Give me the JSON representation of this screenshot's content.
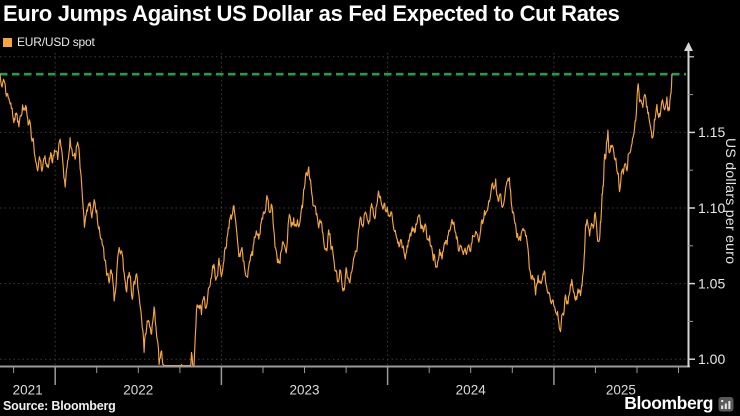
{
  "title": "Euro Jumps Against US Dollar as Fed Expected to Cut Rates",
  "legend": {
    "label": "EUR/USD spot",
    "swatch_color": "#f6a63c"
  },
  "source": "Source: Bloomberg",
  "brand": "Bloomberg",
  "colors": {
    "background": "#000000",
    "line": "#f6a63c",
    "reference": "#1c9e50",
    "grid": "#3c3c3c",
    "axis_x": "#9a9a9a",
    "axis_y": "#d6d6d6",
    "tick_label": "#e8e8e8",
    "year_label": "#dcdcdc"
  },
  "chart_data": {
    "type": "line",
    "title": "EUR/USD spot",
    "xlabel": "",
    "ylabel": "US dollars per euro",
    "legend_position": "top-left",
    "grid": "dotted",
    "xlim": [
      2021.668,
      2025.807
    ],
    "ylim": [
      0.9955,
      1.2025
    ],
    "ytick_values": [
      1.0,
      1.05,
      1.1,
      1.15
    ],
    "ytick_labels": [
      "1.00",
      "1.05",
      "1.10",
      "1.15"
    ],
    "yminor_values": [
      1.025,
      1.075,
      1.125,
      1.175
    ],
    "grid_y": [
      1.0,
      1.05,
      1.1,
      1.15,
      1.2
    ],
    "grid_x": [
      2022,
      2023,
      2024,
      2025
    ],
    "year_labels": [
      "2021",
      "2022",
      "2023",
      "2024",
      "2025"
    ],
    "years": [
      2021,
      2022,
      2023,
      2024,
      2025
    ],
    "reference_line": {
      "value": 1.1885,
      "style": "dashed",
      "meaning": "current spot level"
    },
    "series": [
      {
        "name": "EUR/USD spot",
        "points": [
          [
            2021.668,
            1.1885
          ],
          [
            2021.685,
            1.1832
          ],
          [
            2021.703,
            1.1762
          ],
          [
            2021.718,
            1.1728
          ],
          [
            2021.733,
            1.1695
          ],
          [
            2021.748,
            1.1588
          ],
          [
            2021.761,
            1.1625
          ],
          [
            2021.774,
            1.1568
          ],
          [
            2021.789,
            1.1605
          ],
          [
            2021.804,
            1.1682
          ],
          [
            2021.819,
            1.1645
          ],
          [
            2021.834,
            1.1595
          ],
          [
            2021.849,
            1.1565
          ],
          [
            2021.864,
            1.1455
          ],
          [
            2021.879,
            1.1335
          ],
          [
            2021.894,
            1.1245
          ],
          [
            2021.909,
            1.1318
          ],
          [
            2021.924,
            1.1265
          ],
          [
            2021.939,
            1.1345
          ],
          [
            2021.954,
            1.1285
          ],
          [
            2021.969,
            1.1325
          ],
          [
            2021.984,
            1.1298
          ],
          [
            2022.0,
            1.1375
          ],
          [
            2022.015,
            1.132
          ],
          [
            2022.03,
            1.1455
          ],
          [
            2022.045,
            1.1315
          ],
          [
            2022.06,
            1.1138
          ],
          [
            2022.075,
            1.1315
          ],
          [
            2022.09,
            1.1465
          ],
          [
            2022.105,
            1.1345
          ],
          [
            2022.12,
            1.1322
          ],
          [
            2022.135,
            1.1435
          ],
          [
            2022.15,
            1.1262
          ],
          [
            2022.162,
            1.1108
          ],
          [
            2022.176,
            1.0872
          ],
          [
            2022.19,
            1.0988
          ],
          [
            2022.205,
            1.1015
          ],
          [
            2022.22,
            1.0935
          ],
          [
            2022.235,
            1.1055
          ],
          [
            2022.25,
            1.0985
          ],
          [
            2022.265,
            1.0875
          ],
          [
            2022.28,
            1.0795
          ],
          [
            2022.295,
            1.0665
          ],
          [
            2022.31,
            1.0555
          ],
          [
            2022.325,
            1.0505
          ],
          [
            2022.34,
            1.0565
          ],
          [
            2022.355,
            1.0385
          ],
          [
            2022.37,
            1.0568
          ],
          [
            2022.385,
            1.0738
          ],
          [
            2022.4,
            1.0715
          ],
          [
            2022.415,
            1.0568
          ],
          [
            2022.43,
            1.0445
          ],
          [
            2022.445,
            1.0575
          ],
          [
            2022.46,
            1.0425
          ],
          [
            2022.475,
            1.0515
          ],
          [
            2022.49,
            1.0565
          ],
          [
            2022.505,
            1.0415
          ],
          [
            2022.52,
            1.0265
          ],
          [
            2022.535,
            1.0045
          ],
          [
            2022.55,
            1.0205
          ],
          [
            2022.565,
            1.0245
          ],
          [
            2022.58,
            1.0165
          ],
          [
            2022.595,
            1.0345
          ],
          [
            2022.61,
            1.0155
          ],
          [
            2022.625,
            0.9965
          ],
          [
            2022.64,
            1.0055
          ],
          [
            2022.655,
            0.9915
          ],
          [
            2022.67,
            0.9745
          ],
          [
            2022.685,
            0.9895
          ],
          [
            2022.7,
            0.9595
          ],
          [
            2022.715,
            0.9685
          ],
          [
            2022.73,
            0.9835
          ],
          [
            2022.745,
            0.9745
          ],
          [
            2022.76,
            0.9965
          ],
          [
            2022.775,
            0.9755
          ],
          [
            2022.79,
            0.9865
          ],
          [
            2022.805,
            0.9735
          ],
          [
            2022.82,
            1.0045
          ],
          [
            2022.835,
            0.9935
          ],
          [
            2022.85,
            1.0325
          ],
          [
            2022.865,
            1.0355
          ],
          [
            2022.88,
            1.0295
          ],
          [
            2022.895,
            1.0415
          ],
          [
            2022.91,
            1.0345
          ],
          [
            2022.925,
            1.0475
          ],
          [
            2022.94,
            1.0535
          ],
          [
            2022.955,
            1.0628
          ],
          [
            2022.97,
            1.0538
          ],
          [
            2022.985,
            1.0668
          ],
          [
            2023.0,
            1.0545
          ],
          [
            2023.015,
            1.0648
          ],
          [
            2023.03,
            1.0745
          ],
          [
            2023.045,
            1.0865
          ],
          [
            2023.06,
            1.0925
          ],
          [
            2023.075,
            1.1015
          ],
          [
            2023.09,
            1.0865
          ],
          [
            2023.105,
            1.0678
          ],
          [
            2023.12,
            1.0725
          ],
          [
            2023.135,
            1.0648
          ],
          [
            2023.15,
            1.0548
          ],
          [
            2023.165,
            1.0615
          ],
          [
            2023.18,
            1.0685
          ],
          [
            2023.195,
            1.0765
          ],
          [
            2023.21,
            1.0848
          ],
          [
            2023.225,
            1.0795
          ],
          [
            2023.24,
            1.0905
          ],
          [
            2023.255,
            1.0975
          ],
          [
            2023.27,
            1.1045
          ],
          [
            2023.285,
            1.0985
          ],
          [
            2023.3,
            1.1025
          ],
          [
            2023.315,
            1.0855
          ],
          [
            2023.33,
            1.0715
          ],
          [
            2023.345,
            1.0638
          ],
          [
            2023.36,
            1.0715
          ],
          [
            2023.375,
            1.0762
          ],
          [
            2023.39,
            1.0702
          ],
          [
            2023.405,
            1.0925
          ],
          [
            2023.42,
            1.0875
          ],
          [
            2023.435,
            1.0935
          ],
          [
            2023.45,
            1.0878
          ],
          [
            2023.465,
            1.0875
          ],
          [
            2023.48,
            1.0982
          ],
          [
            2023.495,
            1.1125
          ],
          [
            2023.51,
            1.1235
          ],
          [
            2023.525,
            1.1272
          ],
          [
            2023.54,
            1.1135
          ],
          [
            2023.555,
            1.1015
          ],
          [
            2023.57,
            1.0955
          ],
          [
            2023.585,
            1.0868
          ],
          [
            2023.6,
            1.0912
          ],
          [
            2023.615,
            1.0785
          ],
          [
            2023.63,
            1.0732
          ],
          [
            2023.645,
            1.0855
          ],
          [
            2023.66,
            1.0725
          ],
          [
            2023.675,
            1.0668
          ],
          [
            2023.69,
            1.0588
          ],
          [
            2023.705,
            1.0515
          ],
          [
            2023.72,
            1.0565
          ],
          [
            2023.735,
            1.0468
          ],
          [
            2023.75,
            1.0605
          ],
          [
            2023.765,
            1.0535
          ],
          [
            2023.78,
            1.0572
          ],
          [
            2023.795,
            1.0665
          ],
          [
            2023.81,
            1.0715
          ],
          [
            2023.825,
            1.0852
          ],
          [
            2023.84,
            1.0935
          ],
          [
            2023.855,
            1.0892
          ],
          [
            2023.87,
            1.0965
          ],
          [
            2023.885,
            1.0895
          ],
          [
            2023.9,
            1.1005
          ],
          [
            2023.915,
            1.0955
          ],
          [
            2023.93,
            1.1005
          ],
          [
            2023.945,
            1.1112
          ],
          [
            2023.96,
            1.1045
          ],
          [
            2023.975,
            1.1002
          ],
          [
            2023.99,
            1.0975
          ],
          [
            2024.005,
            1.0948
          ],
          [
            2024.02,
            1.0975
          ],
          [
            2024.035,
            1.0875
          ],
          [
            2024.05,
            1.0825
          ],
          [
            2024.065,
            1.0775
          ],
          [
            2024.08,
            1.0792
          ],
          [
            2024.095,
            1.0748
          ],
          [
            2024.11,
            1.0698
          ],
          [
            2024.125,
            1.0785
          ],
          [
            2024.14,
            1.0815
          ],
          [
            2024.155,
            1.0862
          ],
          [
            2024.17,
            1.0895
          ],
          [
            2024.185,
            1.0945
          ],
          [
            2024.2,
            1.0865
          ],
          [
            2024.215,
            1.0842
          ],
          [
            2024.23,
            1.0882
          ],
          [
            2024.245,
            1.0795
          ],
          [
            2024.26,
            1.0745
          ],
          [
            2024.275,
            1.0652
          ],
          [
            2024.29,
            1.0608
          ],
          [
            2024.305,
            1.0655
          ],
          [
            2024.32,
            1.0705
          ],
          [
            2024.335,
            1.0715
          ],
          [
            2024.35,
            1.0785
          ],
          [
            2024.365,
            1.0822
          ],
          [
            2024.38,
            1.0875
          ],
          [
            2024.395,
            1.0892
          ],
          [
            2024.41,
            1.0835
          ],
          [
            2024.425,
            1.0722
          ],
          [
            2024.44,
            1.0745
          ],
          [
            2024.455,
            1.0692
          ],
          [
            2024.47,
            1.0705
          ],
          [
            2024.485,
            1.0752
          ],
          [
            2024.5,
            1.0715
          ],
          [
            2024.515,
            1.0815
          ],
          [
            2024.53,
            1.0845
          ],
          [
            2024.545,
            1.0792
          ],
          [
            2024.56,
            1.0855
          ],
          [
            2024.575,
            1.0912
          ],
          [
            2024.59,
            1.0965
          ],
          [
            2024.605,
            1.1015
          ],
          [
            2024.62,
            1.1092
          ],
          [
            2024.635,
            1.1135
          ],
          [
            2024.65,
            1.1192
          ],
          [
            2024.665,
            1.1045
          ],
          [
            2024.68,
            1.1092
          ],
          [
            2024.695,
            1.1015
          ],
          [
            2024.71,
            1.1135
          ],
          [
            2024.725,
            1.1195
          ],
          [
            2024.74,
            1.1115
          ],
          [
            2024.755,
            1.0975
          ],
          [
            2024.77,
            1.0895
          ],
          [
            2024.785,
            1.0805
          ],
          [
            2024.8,
            1.0785
          ],
          [
            2024.815,
            1.0865
          ],
          [
            2024.83,
            1.0815
          ],
          [
            2024.845,
            1.0725
          ],
          [
            2024.86,
            1.0565
          ],
          [
            2024.875,
            1.0525
          ],
          [
            2024.89,
            1.0425
          ],
          [
            2024.905,
            1.0555
          ],
          [
            2024.92,
            1.0505
          ],
          [
            2024.935,
            1.0565
          ],
          [
            2024.95,
            1.0515
          ],
          [
            2024.965,
            1.0435
          ],
          [
            2024.98,
            1.0385
          ],
          [
            2025.0,
            1.0352
          ],
          [
            2025.015,
            1.0305
          ],
          [
            2025.03,
            1.0245
          ],
          [
            2025.04,
            1.0182
          ],
          [
            2025.055,
            1.0305
          ],
          [
            2025.07,
            1.0425
          ],
          [
            2025.085,
            1.0365
          ],
          [
            2025.1,
            1.0495
          ],
          [
            2025.115,
            1.0465
          ],
          [
            2025.13,
            1.039
          ],
          [
            2025.145,
            1.0465
          ],
          [
            2025.16,
            1.042
          ],
          [
            2025.17,
            1.0485
          ],
          [
            2025.18,
            1.0625
          ],
          [
            2025.19,
            1.0865
          ],
          [
            2025.2,
            1.0925
          ],
          [
            2025.215,
            1.0815
          ],
          [
            2025.23,
            1.0885
          ],
          [
            2025.245,
            1.0955
          ],
          [
            2025.26,
            1.0825
          ],
          [
            2025.275,
            1.0795
          ],
          [
            2025.285,
            1.0955
          ],
          [
            2025.295,
            1.1145
          ],
          [
            2025.305,
            1.1355
          ],
          [
            2025.315,
            1.1385
          ],
          [
            2025.325,
            1.1515
          ],
          [
            2025.335,
            1.1365
          ],
          [
            2025.35,
            1.1415
          ],
          [
            2025.365,
            1.1325
          ],
          [
            2025.38,
            1.1245
          ],
          [
            2025.395,
            1.1108
          ],
          [
            2025.41,
            1.1245
          ],
          [
            2025.425,
            1.1285
          ],
          [
            2025.44,
            1.1245
          ],
          [
            2025.455,
            1.1365
          ],
          [
            2025.47,
            1.1425
          ],
          [
            2025.485,
            1.1525
          ],
          [
            2025.5,
            1.1725
          ],
          [
            2025.51,
            1.1788
          ],
          [
            2025.52,
            1.1715
          ],
          [
            2025.535,
            1.1665
          ],
          [
            2025.55,
            1.1745
          ],
          [
            2025.565,
            1.1625
          ],
          [
            2025.58,
            1.1545
          ],
          [
            2025.59,
            1.1465
          ],
          [
            2025.605,
            1.1585
          ],
          [
            2025.62,
            1.1685
          ],
          [
            2025.635,
            1.1625
          ],
          [
            2025.65,
            1.1705
          ],
          [
            2025.665,
            1.165
          ],
          [
            2025.68,
            1.1735
          ],
          [
            2025.69,
            1.1665
          ],
          [
            2025.7,
            1.1725
          ],
          [
            2025.71,
            1.1885
          ]
        ]
      }
    ]
  }
}
